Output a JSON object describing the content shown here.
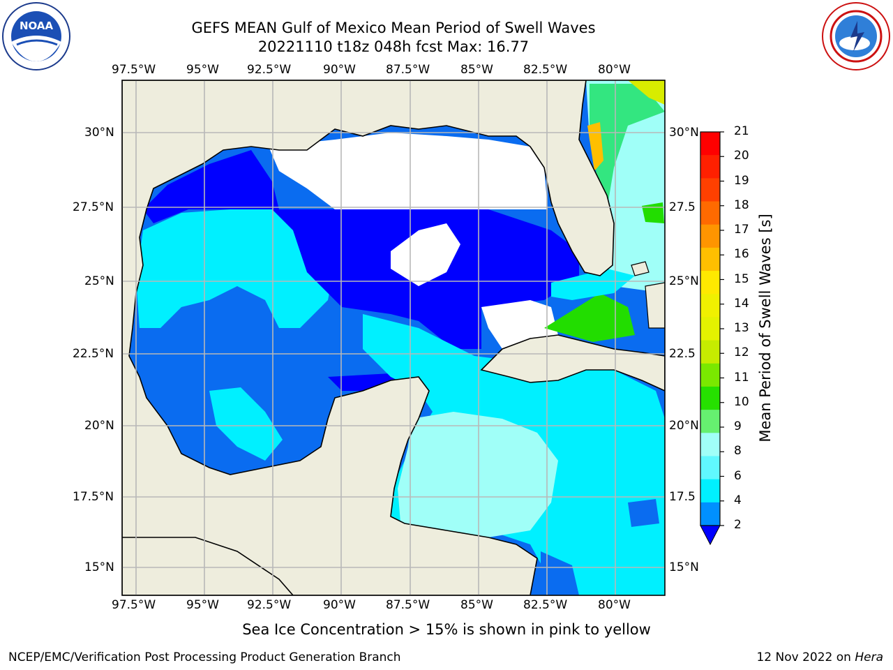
{
  "header": {
    "title_line1": "GEFS MEAN Gulf of Mexico Mean Period of Swell Waves",
    "title_line2": "20221110 t18z 048h fcst   Max: 16.77"
  },
  "axes": {
    "lon_labels": [
      "97.5°W",
      "95°W",
      "92.5°W",
      "90°W",
      "87.5°W",
      "85°W",
      "82.5°W",
      "80°W"
    ],
    "lat_labels": [
      "30°N",
      "27.5°N",
      "25°N",
      "22.5°N",
      "20°N",
      "17.5°N",
      "15°N"
    ],
    "lat_labels_right": [
      "30°N",
      "27.5",
      "25°N",
      "22.5",
      "20°N",
      "17.5",
      "15°N"
    ]
  },
  "colorbar": {
    "label": "Mean Period of Swell Waves [s]",
    "ticks": [
      "21",
      "20",
      "19",
      "18",
      "17",
      "16",
      "15",
      "14",
      "13",
      "12",
      "11",
      "10",
      "9",
      "8",
      "6",
      "4",
      "2"
    ],
    "colors": [
      "#ff0000",
      "#ff2000",
      "#ff4000",
      "#ff6a00",
      "#ff9500",
      "#ffbf00",
      "#ffe900",
      "#f0f000",
      "#e4f200",
      "#c6ec00",
      "#7ae800",
      "#26e000",
      "#66f070",
      "#a0fff8",
      "#60f8ff",
      "#00f0ff",
      "#0090ff"
    ],
    "extend_color": "#0000ff"
  },
  "colors": {
    "land": "#eeeddd",
    "ocean_blue": "#0000ff",
    "ocean_mid": "#0a6cf0",
    "ocean_cyan": "#00f0ff",
    "ocean_lightcyan": "#a0fff8",
    "ocean_green": "#22dd00"
  },
  "notes": {
    "sea_ice": "Sea Ice Concentration > 15% is shown in pink to yellow"
  },
  "footer": {
    "left": "NCEP/EMC/Verification Post Processing Product Generation Branch",
    "right_date": "12 Nov 2022 on ",
    "right_host": "Hera"
  },
  "logos": {
    "left": "noaa-logo",
    "left_text": "NOAA",
    "right": "nws-logo"
  }
}
